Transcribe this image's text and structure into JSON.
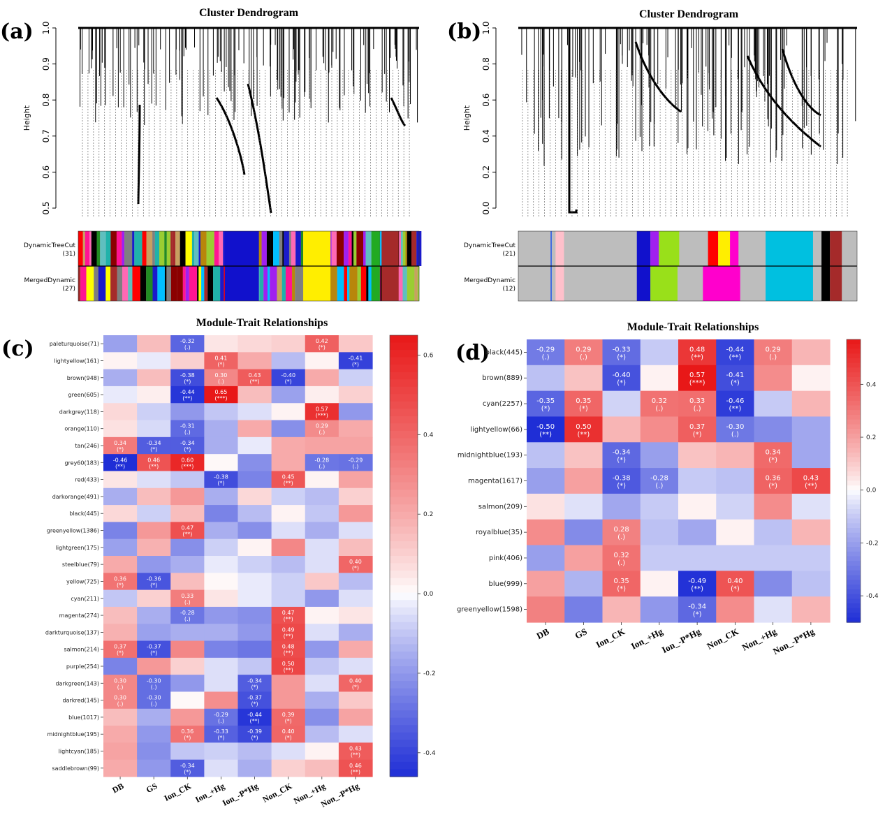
{
  "panels": {
    "a": {
      "label": "(a)",
      "title": "Cluster Dendrogram",
      "ylabel": "Height",
      "yticks": [
        "1.0",
        "0.9",
        "0.8",
        "0.7",
        "0.6",
        "0.5"
      ],
      "bar1_label": "DynamicTreeCut",
      "bar1_count": "(31)",
      "bar2_label": "MergedDynamic",
      "bar2_count": "(27)"
    },
    "b": {
      "label": "(b)",
      "title": "Cluster Dendrogram",
      "ylabel": "Height",
      "yticks": [
        "1.0",
        "0.8",
        "0.6",
        "0.4",
        "0.2",
        "0.0"
      ],
      "bar1_label": "DynamicTreeCut",
      "bar1_count": "(21)",
      "bar2_label": "MergedDynamic",
      "bar2_count": "(12)"
    },
    "c": {
      "label": "(c)",
      "title": "Module-Trait Relationships"
    },
    "d": {
      "label": "(d)",
      "title": "Module-Trait Relationships"
    }
  },
  "chart_data": [
    {
      "type": "heatmap",
      "panel": "c",
      "title": "Module-Trait Relationships",
      "columns": [
        "DB",
        "GS",
        "Ion_CK",
        "Ion_+Hg",
        "Ion_-P*Hg",
        "Non_CK",
        "Non_+Hg",
        "Non_-P*Hg"
      ],
      "rows": [
        "paleturquoise(71)",
        "lightyellow(161)",
        "brown(948)",
        "green(605)",
        "darkgrey(118)",
        "orange(110)",
        "tan(246)",
        "grey60(183)",
        "red(433)",
        "darkorange(491)",
        "black(445)",
        "greenyellow(1386)",
        "lightgreen(175)",
        "steelblue(79)",
        "yellow(725)",
        "cyan(211)",
        "magenta(274)",
        "darkturquoise(137)",
        "salmon(214)",
        "purple(254)",
        "darkgreen(143)",
        "darkred(145)",
        "blue(1017)",
        "midnightblue(195)",
        "lightcyan(185)",
        "saddlebrown(99)"
      ],
      "values": [
        [
          -0.18,
          0.15,
          -0.32,
          0.05,
          0.08,
          0.1,
          0.42,
          0.12
        ],
        [
          0.02,
          -0.03,
          0.1,
          0.41,
          0.2,
          -0.12,
          0.02,
          -0.41
        ],
        [
          -0.15,
          0.15,
          -0.38,
          0.3,
          0.43,
          -0.4,
          0.2,
          -0.08
        ],
        [
          -0.03,
          0.03,
          -0.44,
          0.65,
          0.15,
          -0.18,
          0.03,
          0.1
        ],
        [
          0.08,
          -0.08,
          -0.2,
          -0.1,
          -0.05,
          0.02,
          0.57,
          -0.2
        ],
        [
          0.06,
          -0.06,
          -0.31,
          -0.15,
          0.2,
          -0.22,
          0.29,
          0.2
        ],
        [
          0.34,
          -0.34,
          -0.34,
          -0.15,
          -0.03,
          0.2,
          0.22,
          0.22
        ],
        [
          -0.46,
          0.46,
          0.6,
          0.01,
          -0.22,
          0.2,
          -0.28,
          -0.29
        ],
        [
          0.05,
          -0.05,
          -0.1,
          -0.38,
          -0.25,
          0.45,
          0.02,
          0.22
        ],
        [
          -0.15,
          0.15,
          0.25,
          -0.15,
          0.08,
          -0.08,
          -0.12,
          0.1
        ],
        [
          0.08,
          -0.08,
          0.15,
          -0.25,
          -0.12,
          0.02,
          -0.1,
          0.25
        ],
        [
          -0.25,
          0.25,
          0.47,
          -0.15,
          -0.22,
          -0.05,
          -0.15,
          -0.05
        ],
        [
          -0.18,
          0.18,
          -0.22,
          -0.08,
          0.02,
          0.3,
          -0.05,
          0.15
        ],
        [
          0.2,
          -0.2,
          -0.15,
          -0.03,
          -0.08,
          -0.12,
          -0.05,
          0.4
        ],
        [
          0.36,
          -0.36,
          0.15,
          0.01,
          -0.03,
          -0.08,
          0.12,
          -0.12
        ],
        [
          -0.1,
          0.1,
          0.33,
          0.05,
          -0.03,
          -0.08,
          -0.2,
          -0.05
        ],
        [
          0.15,
          -0.15,
          -0.28,
          -0.2,
          -0.22,
          0.47,
          0.02,
          0.05
        ],
        [
          0.18,
          -0.18,
          -0.15,
          -0.15,
          -0.2,
          0.49,
          -0.05,
          -0.15
        ],
        [
          0.37,
          -0.37,
          0.3,
          -0.25,
          -0.28,
          0.48,
          -0.2,
          0.2
        ],
        [
          -0.25,
          0.25,
          0.1,
          -0.05,
          -0.1,
          0.5,
          -0.1,
          -0.05
        ],
        [
          0.3,
          -0.3,
          -0.2,
          -0.05,
          -0.34,
          0.25,
          -0.05,
          0.4
        ],
        [
          0.3,
          -0.3,
          0.01,
          0.28,
          -0.37,
          0.25,
          -0.15,
          0.12
        ],
        [
          0.15,
          -0.15,
          0.25,
          -0.29,
          -0.44,
          0.39,
          -0.22,
          0.22
        ],
        [
          0.2,
          -0.2,
          0.36,
          -0.33,
          -0.39,
          0.4,
          -0.12,
          -0.05
        ],
        [
          0.22,
          -0.22,
          -0.1,
          -0.08,
          -0.12,
          -0.05,
          0.02,
          0.43
        ],
        [
          0.2,
          -0.2,
          -0.34,
          -0.05,
          -0.15,
          0.1,
          0.15,
          0.46
        ]
      ],
      "labels": [
        [
          "",
          "",
          "-0.32\n(.)",
          "",
          "",
          "",
          "0.42\n(*)",
          ""
        ],
        [
          "",
          "",
          "",
          "0.41\n(*)",
          "",
          "",
          "",
          "-0.41\n(*)"
        ],
        [
          "",
          "",
          "-0.38\n(*)",
          "0.30\n(.)",
          "0.43\n(**)",
          "-0.40\n(*)",
          "",
          ""
        ],
        [
          "",
          "",
          "-0.44\n(**)",
          "0.65\n(***)",
          "",
          "",
          "",
          ""
        ],
        [
          "",
          "",
          "",
          "",
          "",
          "",
          "0.57\n(***)",
          ""
        ],
        [
          "",
          "",
          "-0.31\n(.)",
          "",
          "",
          "",
          "0.29\n(.)",
          ""
        ],
        [
          "0.34\n(*)",
          "-0.34\n(*)",
          "-0.34\n(*)",
          "",
          "",
          "",
          "",
          ""
        ],
        [
          "-0.46\n(**)",
          "0.46\n(**)",
          "0.60\n(***)",
          "",
          "",
          "",
          "-0.28\n(.)",
          "-0.29\n(.)"
        ],
        [
          "",
          "",
          "",
          "-0.38\n(*)",
          "",
          "0.45\n(**)",
          "",
          ""
        ],
        [
          "",
          "",
          "",
          "",
          "",
          "",
          "",
          ""
        ],
        [
          "",
          "",
          "",
          "",
          "",
          "",
          "",
          ""
        ],
        [
          "",
          "",
          "0.47\n(**)",
          "",
          "",
          "",
          "",
          ""
        ],
        [
          "",
          "",
          "",
          "",
          "",
          "",
          "",
          ""
        ],
        [
          "",
          "",
          "",
          "",
          "",
          "",
          "",
          "0.40\n(*)"
        ],
        [
          "0.36\n(*)",
          "-0.36\n(*)",
          "",
          "",
          "",
          "",
          "",
          ""
        ],
        [
          "",
          "",
          "0.33\n(.)",
          "",
          "",
          "",
          "",
          ""
        ],
        [
          "",
          "",
          "-0.28\n(.)",
          "",
          "",
          "0.47\n(**)",
          "",
          ""
        ],
        [
          "",
          "",
          "",
          "",
          "",
          "0.49\n(**)",
          "",
          ""
        ],
        [
          "0.37\n(*)",
          "-0.37\n(*)",
          "",
          "",
          "",
          "0.48\n(**)",
          "",
          ""
        ],
        [
          "",
          "",
          "",
          "",
          "",
          "0.50\n(**)",
          "",
          ""
        ],
        [
          "0.30\n(.)",
          "-0.30\n(.)",
          "",
          "",
          "-0.34\n(*)",
          "",
          "",
          "0.40\n(*)"
        ],
        [
          "0.30\n(.)",
          "-0.30\n(.)",
          "",
          "",
          "-0.37\n(*)",
          "",
          "",
          ""
        ],
        [
          "",
          "",
          "",
          "-0.29\n(.)",
          "-0.44\n(**)",
          "0.39\n(*)",
          "",
          ""
        ],
        [
          "",
          "",
          "0.36\n(*)",
          "-0.33\n(*)",
          "-0.39\n(*)",
          "0.40\n(*)",
          "",
          ""
        ],
        [
          "",
          "",
          "",
          "",
          "",
          "",
          "",
          "0.43\n(**)"
        ],
        [
          "",
          "",
          "-0.34\n(*)",
          "",
          "",
          "",
          "",
          "0.46\n(**)"
        ]
      ],
      "colorbar": {
        "min": -0.46,
        "max": 0.65,
        "ticks": [
          0.6,
          0.4,
          0.2,
          0.0,
          -0.2,
          -0.4
        ],
        "tick_labels": [
          "0.6",
          "0.4",
          "0.2",
          "0.0",
          "-0.2",
          "-0.4"
        ]
      }
    },
    {
      "type": "heatmap",
      "panel": "d",
      "title": "Module-Trait Relationships",
      "columns": [
        "DB",
        "GS",
        "Ion_CK",
        "Ion_+Hg",
        "Ion_-P*Hg",
        "Non_CK",
        "Non_+Hg",
        "Non_-P*Hg"
      ],
      "rows": [
        "black(445)",
        "brown(889)",
        "cyan(2257)",
        "lightyellow(66)",
        "midnightblue(193)",
        "magenta(1617)",
        "salmon(209)",
        "royalblue(35)",
        "pink(406)",
        "blue(999)",
        "greenyellow(1598)"
      ],
      "values": [
        [
          -0.29,
          0.29,
          -0.33,
          -0.1,
          0.48,
          -0.44,
          0.29,
          0.15
        ],
        [
          -0.12,
          0.12,
          -0.4,
          0.02,
          0.57,
          -0.41,
          0.25,
          0.02
        ],
        [
          -0.35,
          0.35,
          -0.08,
          0.32,
          0.33,
          -0.46,
          -0.1,
          0.15
        ],
        [
          -0.5,
          0.5,
          0.15,
          0.25,
          0.37,
          -0.3,
          -0.25,
          -0.18
        ],
        [
          -0.12,
          0.12,
          -0.34,
          -0.2,
          0.12,
          0.15,
          0.34,
          -0.18
        ],
        [
          -0.2,
          0.2,
          -0.38,
          -0.28,
          -0.1,
          -0.12,
          0.36,
          0.43
        ],
        [
          0.05,
          -0.05,
          -0.18,
          -0.1,
          0.02,
          -0.08,
          0.25,
          -0.05
        ],
        [
          0.25,
          -0.25,
          0.28,
          -0.12,
          -0.18,
          0.02,
          -0.12,
          0.15
        ],
        [
          -0.2,
          0.2,
          0.32,
          -0.1,
          -0.1,
          -0.1,
          -0.1,
          -0.1
        ],
        [
          0.2,
          -0.15,
          0.35,
          0.02,
          -0.49,
          0.4,
          -0.25,
          -0.12
        ],
        [
          0.28,
          -0.28,
          0.15,
          -0.22,
          -0.34,
          0.25,
          -0.05,
          0.15
        ]
      ],
      "labels": [
        [
          "-0.29\n(.)",
          "0.29\n(.)",
          "-0.33\n(*)",
          "",
          "0.48\n(**)",
          "-0.44\n(**)",
          "0.29\n(.)",
          ""
        ],
        [
          "",
          "",
          "-0.40\n(*)",
          "",
          "0.57\n(***)",
          "-0.41\n(*)",
          "",
          ""
        ],
        [
          "-0.35\n(*)",
          "0.35\n(*)",
          "",
          "0.32\n(.)",
          "0.33\n(.)",
          "-0.46\n(**)",
          "",
          ""
        ],
        [
          "-0.50\n(**)",
          "0.50\n(**)",
          "",
          "",
          "0.37\n(*)",
          "-0.30\n(.)",
          "",
          ""
        ],
        [
          "",
          "",
          "-0.34\n(*)",
          "",
          "",
          "",
          "0.34\n(*)",
          ""
        ],
        [
          "",
          "",
          "-0.38\n(*)",
          "-0.28\n(.)",
          "",
          "",
          "0.36\n(*)",
          "0.43\n(**)"
        ],
        [
          "",
          "",
          "",
          "",
          "",
          "",
          "",
          ""
        ],
        [
          "",
          "",
          "0.28\n(.)",
          "",
          "",
          "",
          "",
          ""
        ],
        [
          "",
          "",
          "0.32\n(.)",
          "",
          "",
          "",
          "",
          ""
        ],
        [
          "",
          "",
          "0.35\n(*)",
          "",
          "-0.49\n(**)",
          "0.40\n(*)",
          "",
          ""
        ],
        [
          "",
          "",
          "",
          "",
          "-0.34\n(*)",
          "",
          "",
          ""
        ]
      ],
      "colorbar": {
        "min": -0.5,
        "max": 0.57,
        "ticks": [
          0.4,
          0.2,
          0.0,
          -0.2,
          -0.4
        ],
        "tick_labels": [
          "0.4",
          "0.2",
          "0.0",
          "-0.2",
          "-0.4"
        ]
      }
    }
  ],
  "colors": {
    "negative": "#1f2ed6",
    "neutral": "#ffffff",
    "positive": "#e81818"
  }
}
